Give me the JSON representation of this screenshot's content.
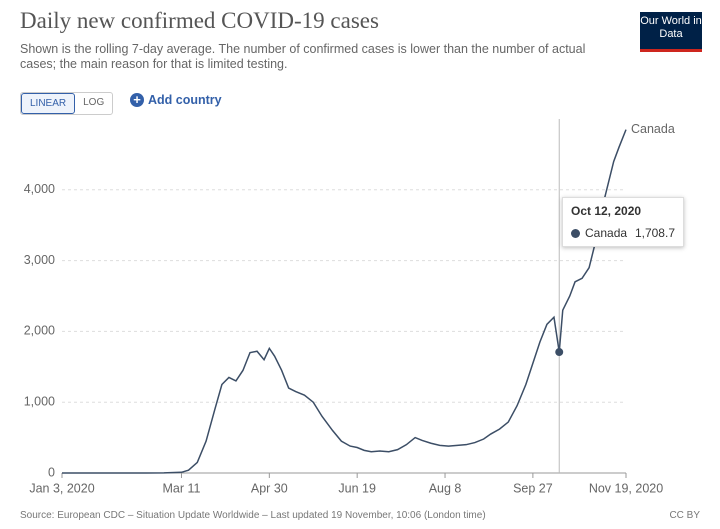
{
  "chart_data": {
    "type": "line",
    "title": "Daily new confirmed COVID-19 cases",
    "subtitle": "Shown is the rolling 7-day average. The number of confirmed cases is lower than the number of actual cases; the main reason for that is limited testing.",
    "logo": "Our World in Data",
    "buttons": [
      "LINEAR",
      "LOG"
    ],
    "add_button": "Add country",
    "source": "Source: European CDC – Situation Update Worldwide – Last updated 19 November, 10:06 (London time)",
    "license": "CC BY",
    "x": [
      "2020-01-03",
      "2020-01-20",
      "2020-02-05",
      "2020-02-20",
      "2020-03-01",
      "2020-03-05",
      "2020-03-11",
      "2020-03-15",
      "2020-03-20",
      "2020-03-25",
      "2020-03-30",
      "2020-04-03",
      "2020-04-07",
      "2020-04-11",
      "2020-04-15",
      "2020-04-19",
      "2020-04-23",
      "2020-04-27",
      "2020-04-30",
      "2020-05-03",
      "2020-05-07",
      "2020-05-11",
      "2020-05-15",
      "2020-05-20",
      "2020-05-25",
      "2020-05-30",
      "2020-06-05",
      "2020-06-10",
      "2020-06-15",
      "2020-06-19",
      "2020-06-23",
      "2020-06-27",
      "2020-07-02",
      "2020-07-07",
      "2020-07-12",
      "2020-07-17",
      "2020-07-22",
      "2020-07-26",
      "2020-07-31",
      "2020-08-05",
      "2020-08-10",
      "2020-08-15",
      "2020-08-20",
      "2020-08-25",
      "2020-08-30",
      "2020-09-03",
      "2020-09-08",
      "2020-09-13",
      "2020-09-18",
      "2020-09-23",
      "2020-09-27",
      "2020-10-01",
      "2020-10-05",
      "2020-10-09",
      "2020-10-12",
      "2020-10-14",
      "2020-10-18",
      "2020-10-21",
      "2020-10-25",
      "2020-10-29",
      "2020-11-02",
      "2020-11-05",
      "2020-11-09",
      "2020-11-12",
      "2020-11-15",
      "2020-11-19"
    ],
    "series": [
      {
        "name": "Canada",
        "color": "#3c4e66",
        "values": [
          0,
          0,
          0,
          0,
          2,
          5,
          10,
          40,
          150,
          450,
          900,
          1250,
          1350,
          1300,
          1450,
          1700,
          1720,
          1600,
          1760,
          1650,
          1450,
          1200,
          1150,
          1100,
          1000,
          800,
          600,
          450,
          380,
          360,
          320,
          300,
          310,
          300,
          330,
          400,
          500,
          460,
          420,
          390,
          380,
          390,
          400,
          430,
          480,
          550,
          620,
          720,
          950,
          1250,
          1550,
          1850,
          2100,
          2200,
          1708.7,
          2300,
          2500,
          2700,
          2750,
          2900,
          3300,
          3700,
          4100,
          4400,
          4600,
          4850
        ]
      }
    ],
    "xlim": [
      "2020-01-03",
      "2020-11-19"
    ],
    "xticks": [
      {
        "value": "2020-01-03",
        "label": "Jan 3, 2020"
      },
      {
        "value": "2020-03-11",
        "label": "Mar 11"
      },
      {
        "value": "2020-04-30",
        "label": "Apr 30"
      },
      {
        "value": "2020-06-19",
        "label": "Jun 19"
      },
      {
        "value": "2020-08-08",
        "label": "Aug 8"
      },
      {
        "value": "2020-09-27",
        "label": "Sep 27"
      },
      {
        "value": "2020-11-19",
        "label": "Nov 19, 2020"
      }
    ],
    "ylim": [
      0,
      5000
    ],
    "yticks": [
      0,
      {
        "value": 1000,
        "label": "1,000"
      },
      {
        "value": 2000,
        "label": "2,000"
      },
      {
        "value": 3000,
        "label": "3,000"
      },
      {
        "value": 4000,
        "label": "4,000"
      }
    ],
    "grid": true,
    "tooltip": {
      "x": "2020-10-12",
      "title": "Oct 12, 2020",
      "series": "Canada",
      "value": 1708.7,
      "value_label": "1,708.7"
    }
  }
}
